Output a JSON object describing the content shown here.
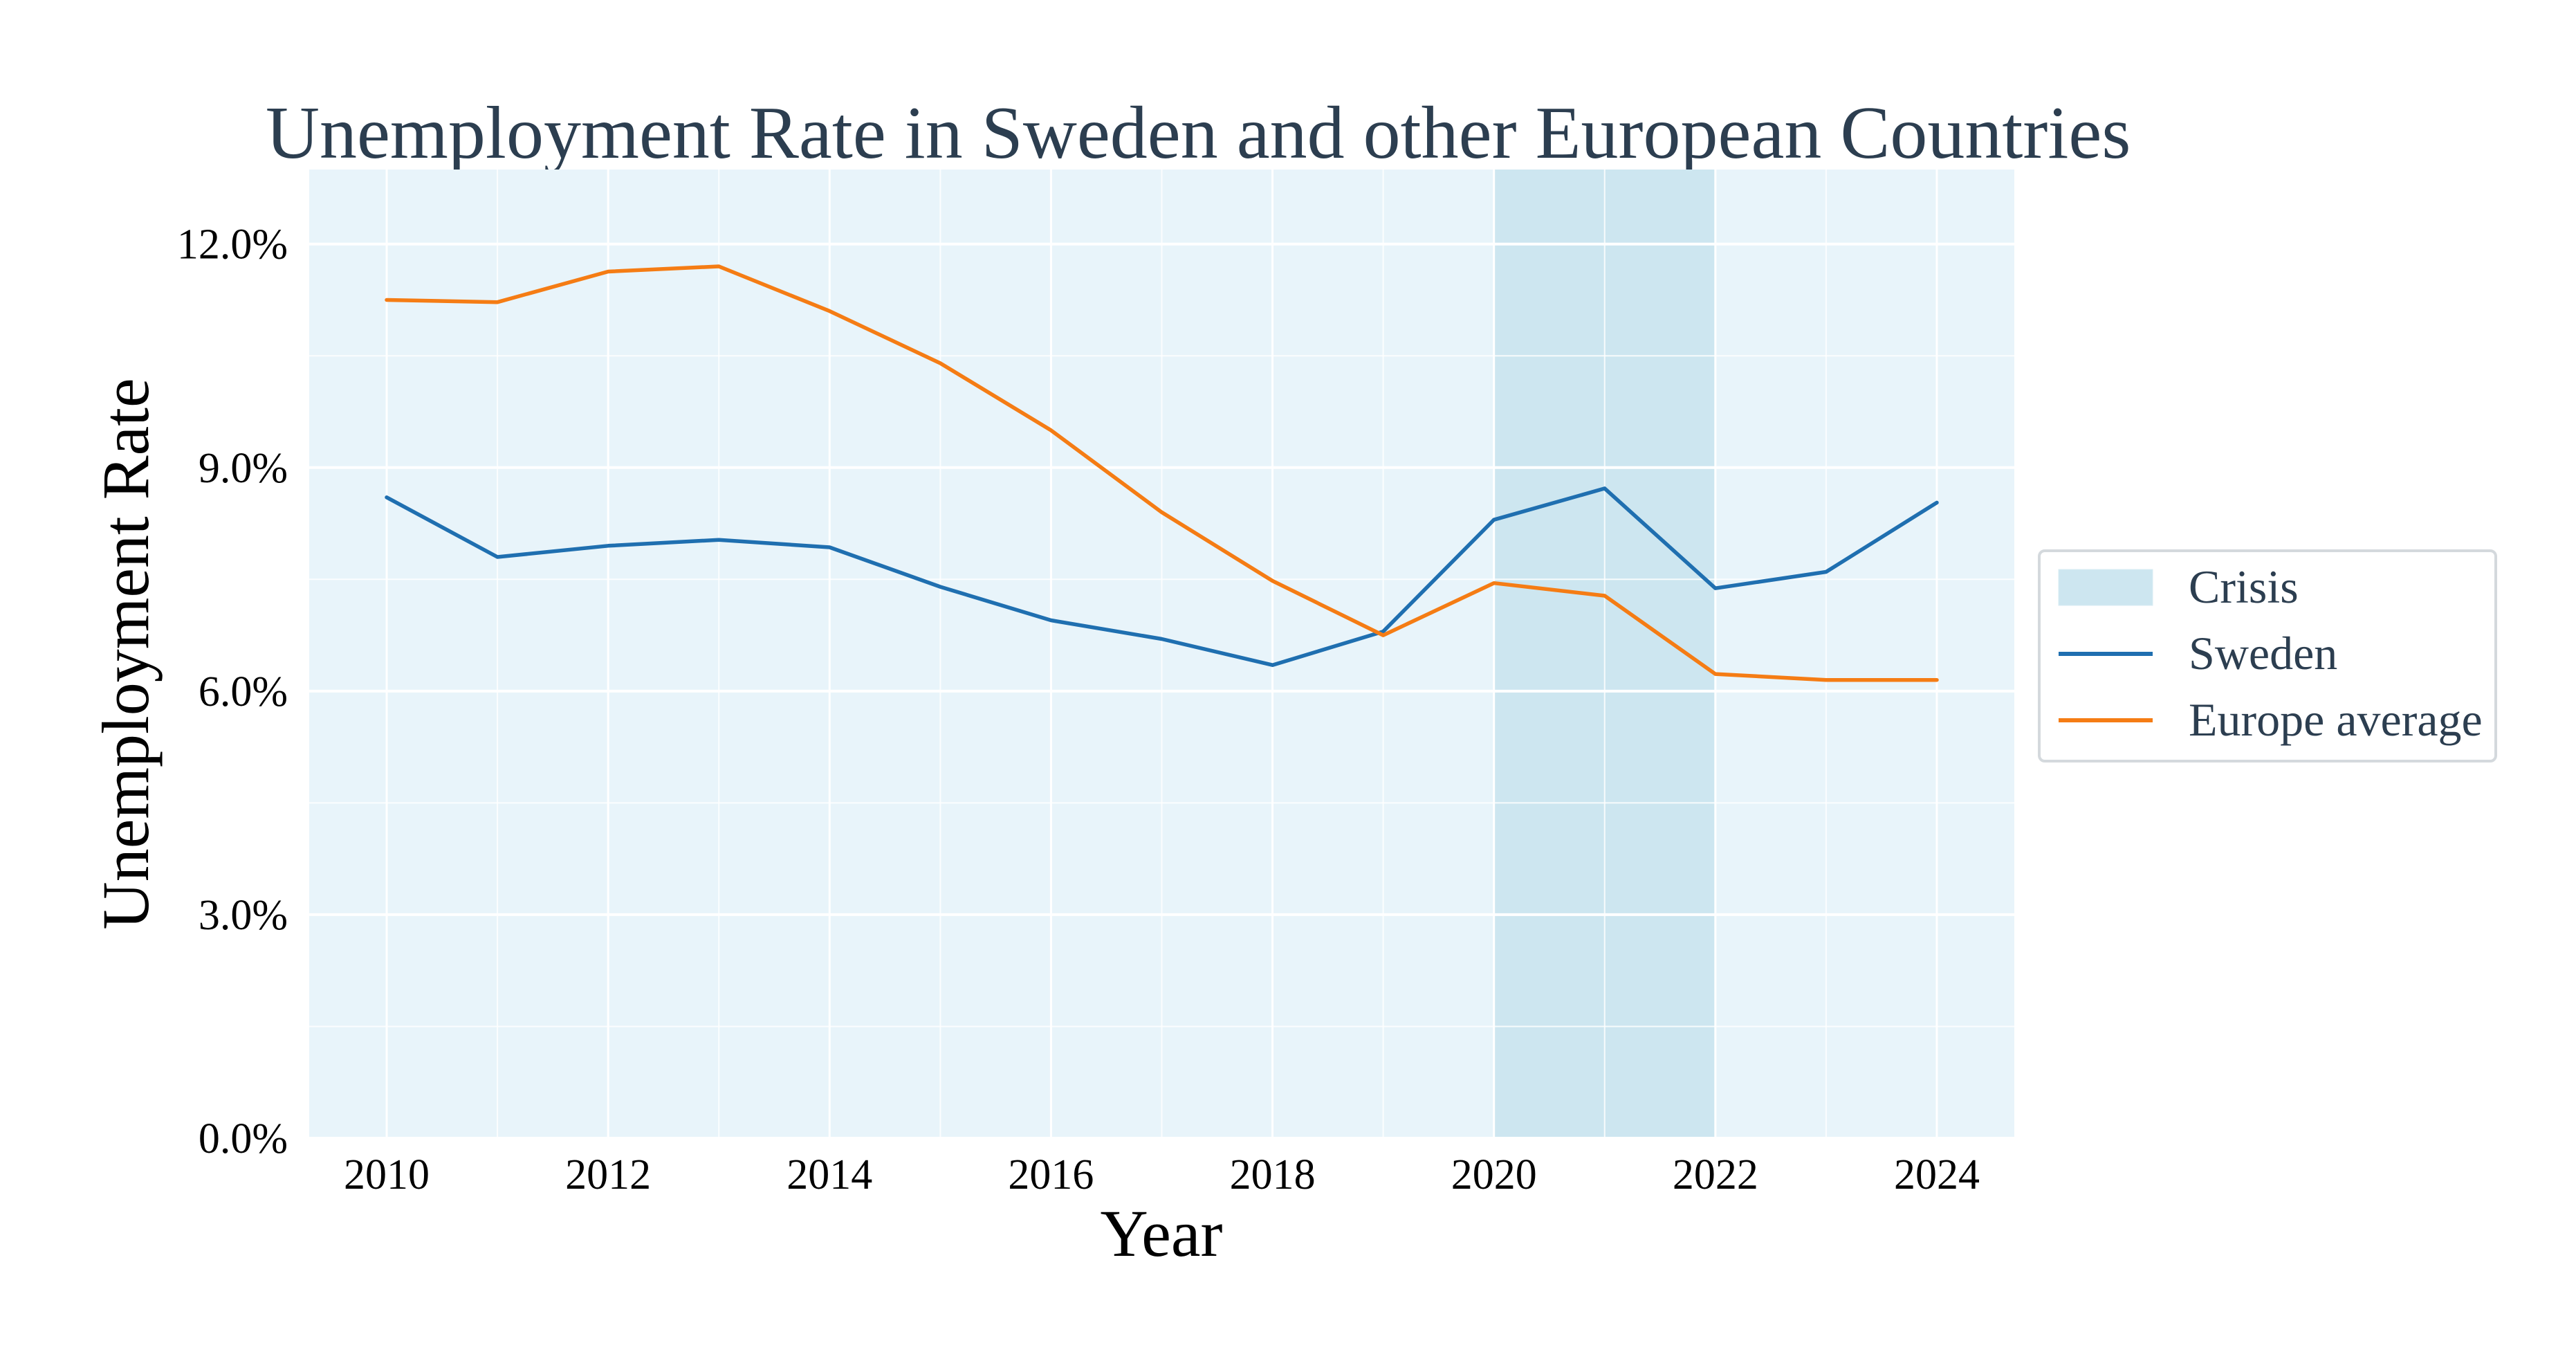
{
  "chart_data": {
    "type": "line",
    "title": "Unemployment Rate in Sweden and other European Countries",
    "xlabel": "Year",
    "ylabel": "Unemployment Rate",
    "x": [
      2010,
      2011,
      2012,
      2013,
      2014,
      2015,
      2016,
      2017,
      2018,
      2019,
      2020,
      2021,
      2022,
      2023,
      2024
    ],
    "xlim": [
      2009.3,
      2024.7
    ],
    "ylim": [
      0,
      13
    ],
    "x_ticks": [
      2010,
      2012,
      2014,
      2016,
      2018,
      2020,
      2022,
      2024
    ],
    "x_tick_labels": [
      "2010",
      "2012",
      "2014",
      "2016",
      "2018",
      "2020",
      "2022",
      "2024"
    ],
    "y_ticks": [
      0,
      3,
      6,
      9,
      12
    ],
    "y_tick_labels": [
      "0.0%",
      "3.0%",
      "6.0%",
      "9.0%",
      "12.0%"
    ],
    "y_minor_ticks": [
      1.5,
      4.5,
      7.5,
      10.5
    ],
    "x_minor_ticks": [
      2011,
      2013,
      2015,
      2017,
      2019,
      2021,
      2023
    ],
    "grid": true,
    "background_color": "#e8f4fa",
    "legend_position": "right",
    "crisis": {
      "name": "Crisis",
      "x_start": 2020,
      "x_end": 2022,
      "color": "#cde6f0"
    },
    "series": [
      {
        "name": "Sweden",
        "color": "#1f6fb0",
        "values": [
          8.6,
          7.8,
          7.95,
          8.03,
          7.93,
          7.4,
          6.95,
          6.7,
          6.35,
          6.8,
          8.3,
          8.72,
          7.38,
          7.6,
          8.53
        ]
      },
      {
        "name": "Europe average",
        "color": "#f57c14",
        "values": [
          11.25,
          11.22,
          11.63,
          11.7,
          11.1,
          10.4,
          9.5,
          8.4,
          7.48,
          6.75,
          7.45,
          7.28,
          6.23,
          6.15,
          6.15
        ]
      }
    ]
  }
}
